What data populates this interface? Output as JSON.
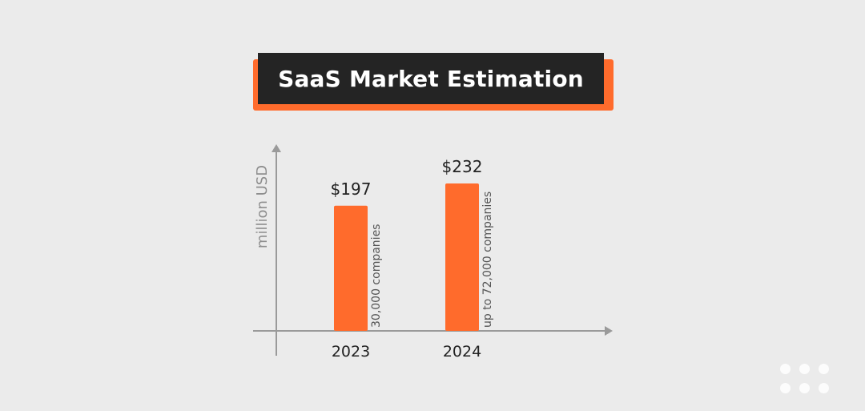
{
  "chart_data": {
    "type": "bar",
    "title": "SaaS Market Estimation",
    "ylabel": "million USD",
    "xlabel": "",
    "categories": [
      "2023",
      "2024"
    ],
    "values": [
      197,
      232
    ],
    "value_labels": [
      "$197",
      "$232"
    ],
    "annotations": [
      "30,000 companies",
      "up to 72,000 companies"
    ],
    "ylim": [
      0,
      290
    ],
    "grid": false,
    "colors": {
      "bar": "#ff6b2c",
      "axis": "#9a9a9a",
      "title_bg": "#242424",
      "title_accent": "#ff6b2c",
      "background": "#ebebeb"
    }
  },
  "logo": {
    "icon": "six-dot-logo-icon"
  }
}
